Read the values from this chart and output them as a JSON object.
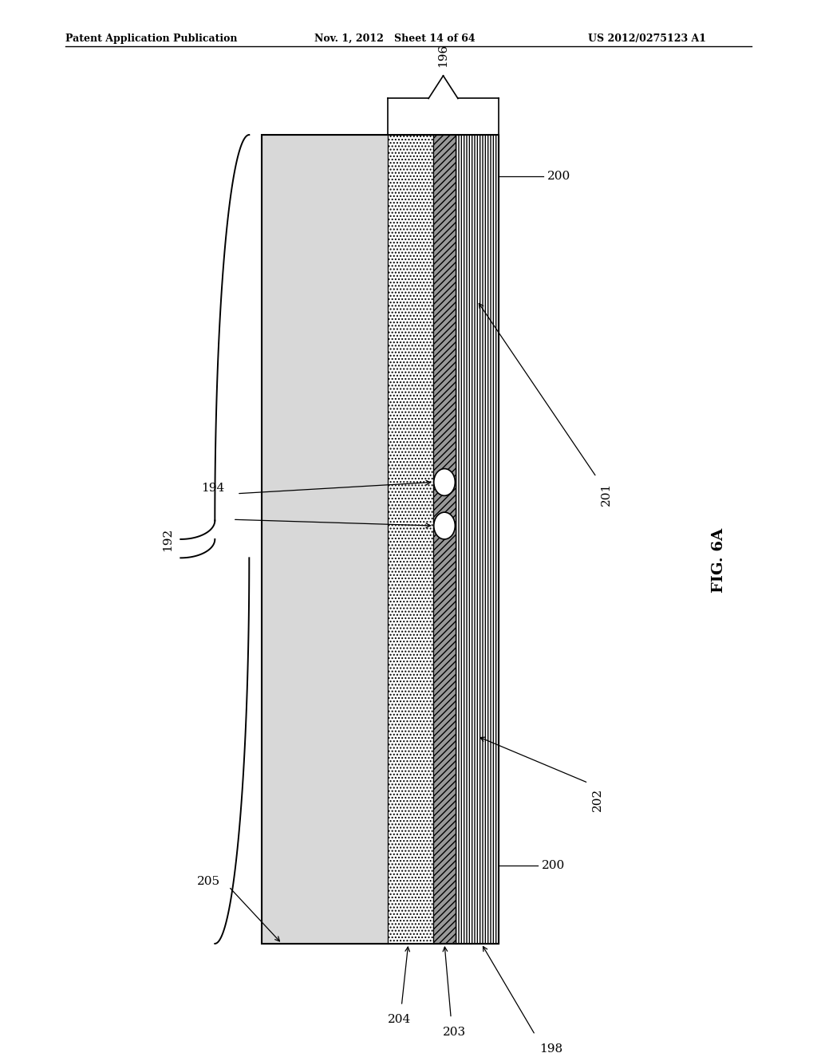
{
  "title_left": "Patent Application Publication",
  "title_mid": "Nov. 1, 2012   Sheet 14 of 64",
  "title_right": "US 2012/0275123 A1",
  "fig_label": "FIG. 6A",
  "bg_color": "#ffffff"
}
